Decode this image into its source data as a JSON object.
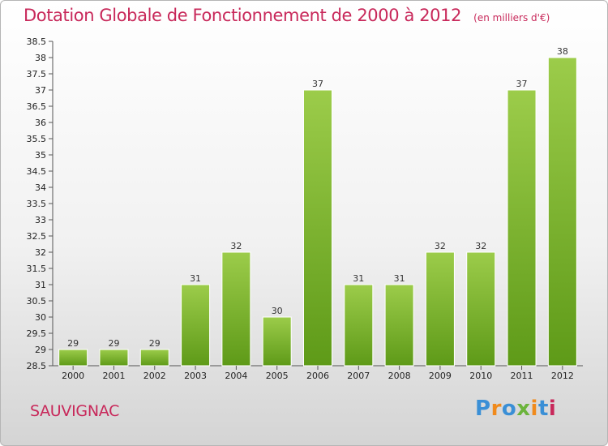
{
  "title": "Dotation Globale de Fonctionnement de 2000 à 2012",
  "unit_note": "(en milliers d'€)",
  "commune": "SAUVIGNAC",
  "logo_text": "Proxiti",
  "colors": {
    "bar_top": "#9ccc4a",
    "bar_bottom": "#5e9a18",
    "title": "#c8285a"
  },
  "chart_data": {
    "type": "bar",
    "title": "Dotation Globale de Fonctionnement de 2000 à 2012",
    "subtitle": "(en milliers d'€)",
    "xlabel": "",
    "ylabel": "",
    "categories": [
      "2000",
      "2001",
      "2002",
      "2003",
      "2004",
      "2005",
      "2006",
      "2007",
      "2008",
      "2009",
      "2010",
      "2011",
      "2012"
    ],
    "values": [
      29,
      29,
      29,
      31,
      32,
      30,
      37,
      31,
      31,
      32,
      32,
      37,
      38
    ],
    "ylim": [
      28.5,
      38.5
    ],
    "ytick_step": 0.5,
    "ytick_labels": [
      "28.5",
      "29",
      "29.5",
      "30",
      "30.5",
      "31",
      "31.5",
      "32",
      "32.5",
      "33",
      "33.5",
      "34",
      "34.5",
      "35",
      "35.5",
      "36",
      "36.5",
      "37",
      "37.5",
      "38",
      "38.5"
    ],
    "grid": false,
    "legend": "none"
  }
}
